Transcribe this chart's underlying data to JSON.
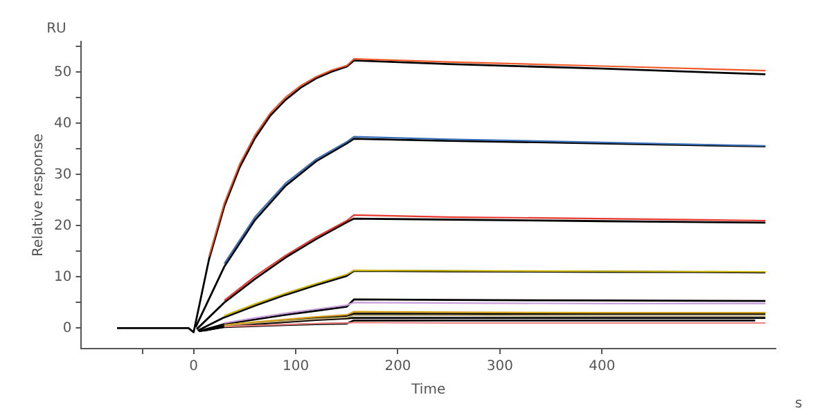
{
  "chart_data": {
    "type": "line",
    "xlabel": "Time",
    "ylabel": "Relative response",
    "annotations": [
      "RU",
      "s"
    ],
    "xlim": [
      -110,
      570
    ],
    "xticks": [
      {
        "value": -50,
        "label": null
      },
      0,
      100,
      200,
      300,
      400
    ],
    "ylim": [
      -4,
      56
    ],
    "yticks": [
      0,
      {
        "value": 5,
        "label": null
      },
      10,
      {
        "value": 15,
        "label": null
      },
      20,
      {
        "value": 25,
        "label": null
      },
      30,
      {
        "value": 35,
        "label": null
      },
      40,
      {
        "value": 45,
        "label": null
      },
      50,
      {
        "value": 55,
        "label": null
      }
    ],
    "grid": false,
    "legend": false,
    "marker": "none",
    "line_style": "solid",
    "series": [
      {
        "color": "#f05a28",
        "x": [
          15,
          30,
          45,
          60,
          75,
          90,
          105,
          120,
          135,
          150,
          157,
          250,
          400,
          560
        ],
        "values": [
          14.0,
          24.4,
          32.0,
          37.7,
          42.0,
          45.1,
          47.4,
          49.1,
          50.4,
          51.3,
          52.6,
          52.0,
          51.2,
          50.3
        ]
      },
      {
        "color": "#3a6fb5",
        "x": [
          30,
          60,
          90,
          120,
          150,
          157,
          250,
          400,
          560
        ],
        "values": [
          12.6,
          21.7,
          28.3,
          33.0,
          36.4,
          37.4,
          36.9,
          36.3,
          35.6
        ]
      },
      {
        "color": "#e8352e",
        "x": [
          30,
          60,
          90,
          120,
          150,
          157,
          250,
          400,
          560
        ],
        "values": [
          5.4,
          10.1,
          14.2,
          17.8,
          21.0,
          22.1,
          21.7,
          21.4,
          21.0
        ]
      },
      {
        "color": "#c8b400",
        "x": [
          30,
          60,
          90,
          120,
          150,
          157,
          250,
          400,
          560
        ],
        "values": [
          2.4,
          4.7,
          6.8,
          8.7,
          10.5,
          11.3,
          11.2,
          11.1,
          11.0
        ]
      },
      {
        "color": "#c9a0dc",
        "x": [
          30,
          60,
          90,
          120,
          150,
          157,
          250,
          400,
          560
        ],
        "values": [
          1.0,
          2.0,
          2.9,
          3.7,
          4.5,
          5.0,
          4.9,
          4.8,
          4.8
        ]
      },
      {
        "color": "#d4a017",
        "x": [
          30,
          60,
          90,
          120,
          150,
          157,
          250,
          400,
          560
        ],
        "values": [
          0.6,
          1.2,
          1.7,
          2.2,
          2.6,
          3.2,
          3.1,
          3.0,
          3.0
        ]
      },
      {
        "color": "#b8a878",
        "x": [
          30,
          60,
          90,
          120,
          150,
          157,
          250,
          400,
          560
        ],
        "values": [
          0.5,
          1.0,
          1.4,
          1.8,
          2.1,
          2.5,
          2.5,
          2.4,
          2.4
        ]
      },
      {
        "color": "#f08080",
        "x": [
          30,
          60,
          90,
          120,
          150,
          157,
          250,
          400,
          560
        ],
        "values": [
          0.3,
          0.5,
          0.7,
          0.9,
          1.0,
          1.1,
          1.0,
          1.0,
          1.0
        ]
      },
      {
        "color": "#000000",
        "x": [
          -75,
          -5,
          0,
          15,
          30,
          45,
          60,
          75,
          90,
          105,
          120,
          135,
          150,
          157,
          250,
          400,
          560
        ],
        "values": [
          0,
          0,
          -0.8,
          13.4,
          23.8,
          31.4,
          37.1,
          41.5,
          44.6,
          47.0,
          48.8,
          50.1,
          51.1,
          52.3,
          51.6,
          50.7,
          49.6
        ]
      },
      {
        "color": "#000000",
        "x": [
          2,
          30,
          60,
          90,
          120,
          150,
          157,
          250,
          400,
          560
        ],
        "values": [
          0.2,
          12.0,
          21.1,
          27.8,
          32.6,
          36.1,
          37.0,
          36.6,
          36.1,
          35.5
        ]
      },
      {
        "color": "#000000",
        "x": [
          3,
          30,
          60,
          90,
          120,
          150,
          157,
          250,
          400,
          560
        ],
        "values": [
          -0.2,
          5.0,
          9.6,
          13.8,
          17.4,
          20.7,
          21.4,
          21.2,
          20.9,
          20.6
        ]
      },
      {
        "color": "#000000",
        "x": [
          4,
          30,
          60,
          90,
          120,
          150,
          157,
          250,
          400,
          560
        ],
        "values": [
          -0.5,
          2.1,
          4.4,
          6.5,
          8.4,
          10.2,
          11.2,
          11.1,
          11.0,
          10.9
        ]
      },
      {
        "color": "#000000",
        "x": [
          5,
          30,
          60,
          90,
          120,
          150,
          157,
          250,
          400,
          560
        ],
        "values": [
          -0.6,
          0.8,
          1.7,
          2.6,
          3.4,
          4.2,
          5.6,
          5.5,
          5.4,
          5.3
        ]
      },
      {
        "color": "#000000",
        "x": [
          6,
          30,
          60,
          90,
          120,
          150,
          157,
          250,
          400,
          560
        ],
        "values": [
          -0.6,
          0.4,
          1.0,
          1.5,
          2.0,
          2.4,
          2.8,
          2.8,
          2.8,
          2.8
        ]
      },
      {
        "color": "#000000",
        "x": [
          10,
          30,
          60,
          90,
          120,
          150,
          157,
          250,
          400,
          560
        ],
        "values": [
          -0.5,
          0.3,
          0.8,
          1.2,
          1.6,
          1.9,
          2.0,
          2.0,
          2.0,
          2.0
        ]
      },
      {
        "color": "#000000",
        "x": [
          14,
          30,
          60,
          90,
          120,
          150,
          157,
          250,
          400,
          550
        ],
        "values": [
          -0.3,
          0.2,
          0.4,
          0.6,
          0.8,
          0.9,
          1.5,
          1.5,
          1.5,
          1.5
        ]
      }
    ]
  }
}
